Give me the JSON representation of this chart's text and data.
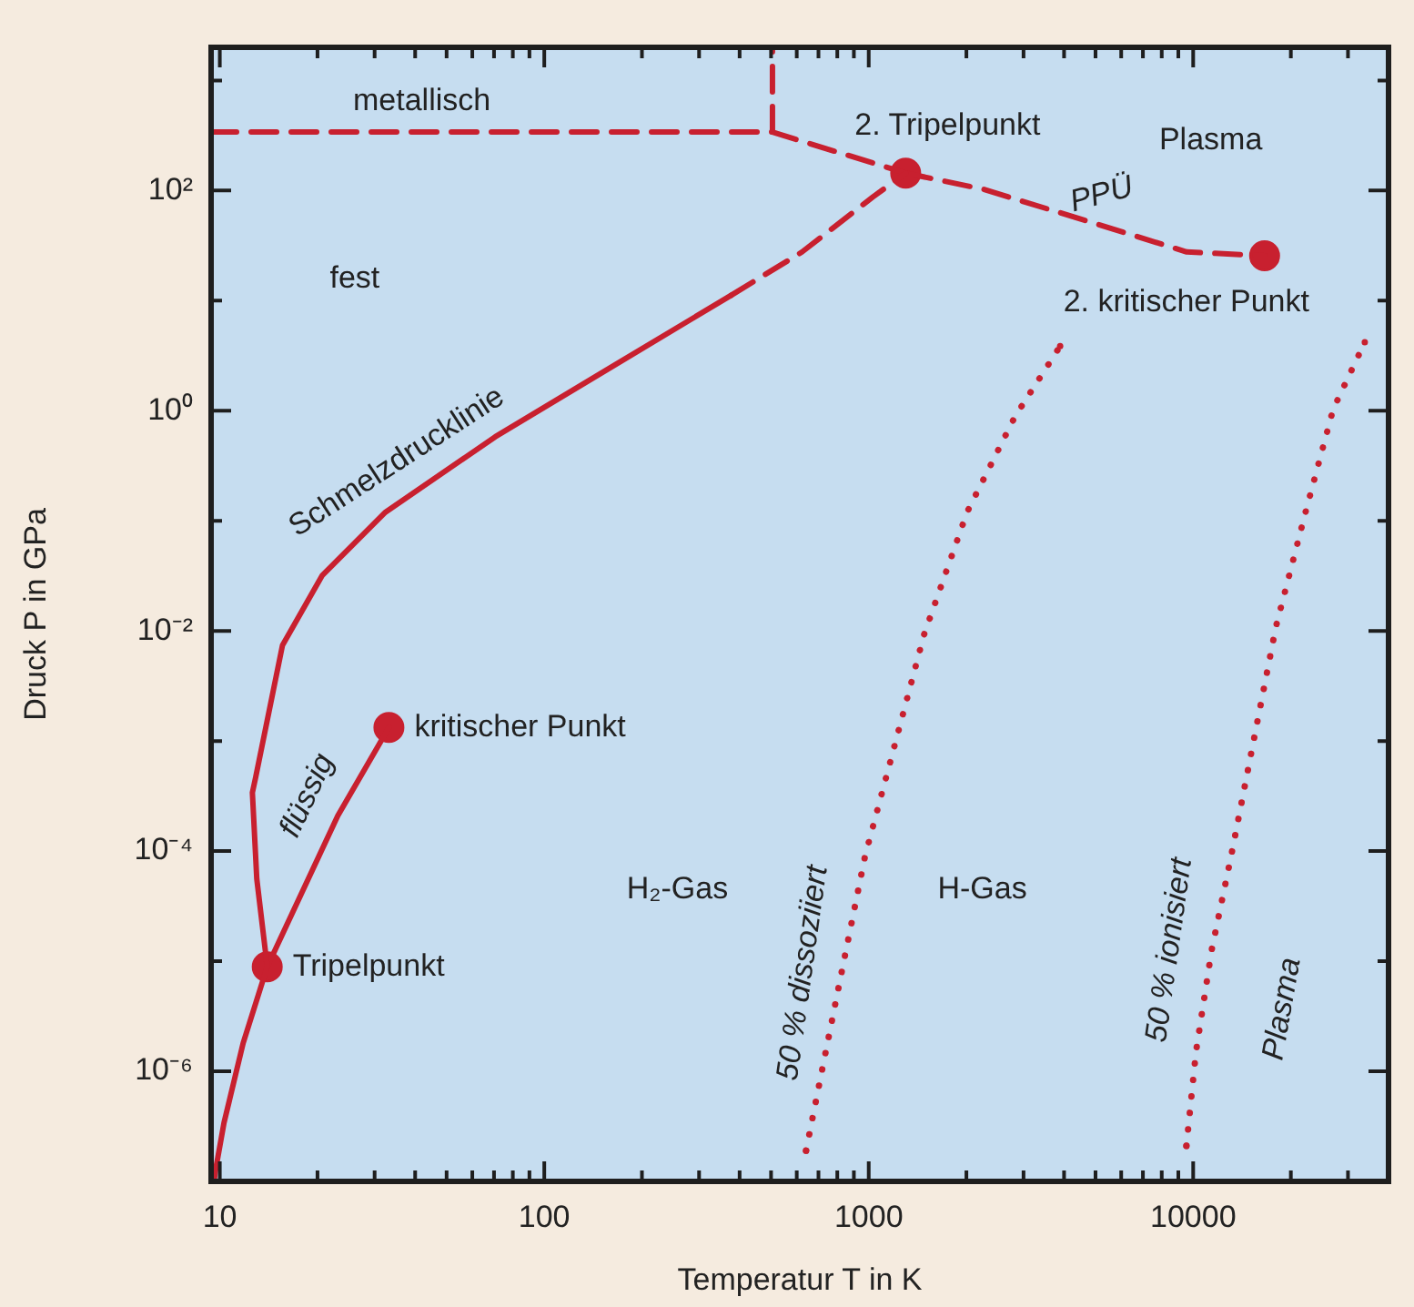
{
  "chart_data": {
    "type": "line",
    "xlabel": "Temperatur T in K",
    "ylabel": "Druck P in GPa",
    "log": "xy",
    "grid": false,
    "legend": false,
    "xlim": [
      9.4,
      40000
    ],
    "ylim": [
      1e-07,
      2000
    ],
    "xticks": [
      10,
      {
        "value": 20,
        "label": null
      },
      {
        "value": 30,
        "label": null
      },
      {
        "value": 40,
        "label": null
      },
      {
        "value": 50,
        "label": null
      },
      {
        "value": 60,
        "label": null
      },
      {
        "value": 70,
        "label": null
      },
      {
        "value": 80,
        "label": null
      },
      {
        "value": 90,
        "label": null
      },
      100,
      {
        "value": 200,
        "label": null
      },
      {
        "value": 300,
        "label": null
      },
      {
        "value": 400,
        "label": null
      },
      {
        "value": 500,
        "label": null
      },
      {
        "value": 600,
        "label": null
      },
      {
        "value": 700,
        "label": null
      },
      {
        "value": 800,
        "label": null
      },
      {
        "value": 900,
        "label": null
      },
      1000,
      {
        "value": 2000,
        "label": null
      },
      {
        "value": 3000,
        "label": null
      },
      {
        "value": 4000,
        "label": null
      },
      {
        "value": 5000,
        "label": null
      },
      {
        "value": 6000,
        "label": null
      },
      {
        "value": 7000,
        "label": null
      },
      {
        "value": 8000,
        "label": null
      },
      {
        "value": 9000,
        "label": null
      },
      10000,
      {
        "value": 20000,
        "label": null
      },
      {
        "value": 30000,
        "label": null
      }
    ],
    "yticks": [
      {
        "value": 1e-06,
        "label": "10⁻⁶"
      },
      {
        "value": 1e-05,
        "label": null
      },
      {
        "value": 0.0001,
        "label": "10⁻⁴"
      },
      {
        "value": 0.001,
        "label": null
      },
      {
        "value": 0.01,
        "label": "10⁻²"
      },
      {
        "value": 0.1,
        "label": null
      },
      {
        "value": 1,
        "label": "10⁰"
      },
      {
        "value": 10,
        "label": null
      },
      {
        "value": 100,
        "label": "10²"
      },
      {
        "value": 1000,
        "label": null
      }
    ],
    "series": [
      {
        "line_style": "solid",
        "color": "#c8202f",
        "x": [
          9.6,
          9.7,
          10.3,
          11.8,
          14,
          13,
          12.6,
          12.9,
          15.6,
          20.7,
          32.4,
          70.6,
          163,
          377
        ],
        "values": [
          1e-07,
          1.26e-07,
          3.4e-07,
          1.8e-06,
          8.9e-06,
          5.6e-05,
          0.00034,
          0.00047,
          0.0074,
          0.032,
          0.12,
          0.58,
          2.55,
          11.2
        ]
      },
      {
        "line_style": "dashed",
        "color": "#c8202f",
        "x": [
          377,
          622,
          1030,
          1300
        ],
        "values": [
          11.2,
          27.6,
          87.6,
          144
        ]
      },
      {
        "line_style": "solid",
        "color": "#c8202f",
        "x": [
          14,
          23.1,
          33.2
        ],
        "values": [
          8.9e-06,
          0.00021,
          0.00133
        ]
      },
      {
        "line_style": "dashed",
        "color": "#c8202f",
        "x": [
          9.4,
          505,
          1300
        ],
        "values": [
          340,
          340,
          144
        ]
      },
      {
        "line_style": "dashed",
        "color": "#c8202f",
        "x": [
          505,
          505
        ],
        "values": [
          340,
          2000
        ]
      },
      {
        "line_style": "dashed",
        "color": "#c8202f",
        "x": [
          1300,
          2250,
          4650,
          9550,
          16600
        ],
        "values": [
          144,
          103,
          53.5,
          27.7,
          25.6
        ]
      },
      {
        "line_style": "dotted",
        "color": "#c8202f",
        "x": [
          641,
          697,
          824,
          975,
          1150,
          1480,
          2010,
          2820,
          3890
        ],
        "values": [
          1.9e-07,
          6.6e-07,
          7.8e-06,
          9.1e-05,
          0.00056,
          0.0092,
          0.12,
          0.88,
          3.86
        ]
      },
      {
        "line_style": "dotted",
        "color": "#c8202f",
        "x": [
          9530,
          10200,
          11400,
          13100,
          15100,
          18000,
          22200,
          27000,
          33800
        ],
        "values": [
          2.1e-07,
          1.5e-06,
          1.26e-05,
          9.1e-05,
          0.00078,
          0.011,
          0.12,
          1.03,
          4.2
        ]
      },
      {
        "type": "scatter",
        "marker": "circle",
        "color": "#c8202f",
        "x": [
          14,
          33.2,
          1300,
          16600
        ],
        "values": [
          8.9e-06,
          0.00133,
          144,
          25.6
        ]
      }
    ],
    "annotations": [
      "metallisch",
      "fest",
      "Plasma",
      "H₂-Gas",
      "H-Gas",
      "flüssig",
      "Plasma",
      {
        "text": "Tripelpunkt",
        "x": 14,
        "y": 8.9e-06
      },
      {
        "text": "kritischer Punkt",
        "x": 33.2,
        "y": 0.00133
      },
      {
        "text": "2. Tripelpunkt",
        "x": 1300,
        "y": 144
      },
      {
        "text": "2. kritischer Punkt",
        "x": 16600,
        "y": 25.6
      },
      {
        "text": "Schmelzdrucklinie",
        "x": 40,
        "y": 0.2
      },
      {
        "text": "PPÜ",
        "x": 4650,
        "y": 53.5
      },
      {
        "text": "50 % dissoziiert",
        "x": 824,
        "y": 7.8e-06
      },
      {
        "text": "50 % ionisiert",
        "x": 11400,
        "y": 1.26e-05
      }
    ]
  }
}
